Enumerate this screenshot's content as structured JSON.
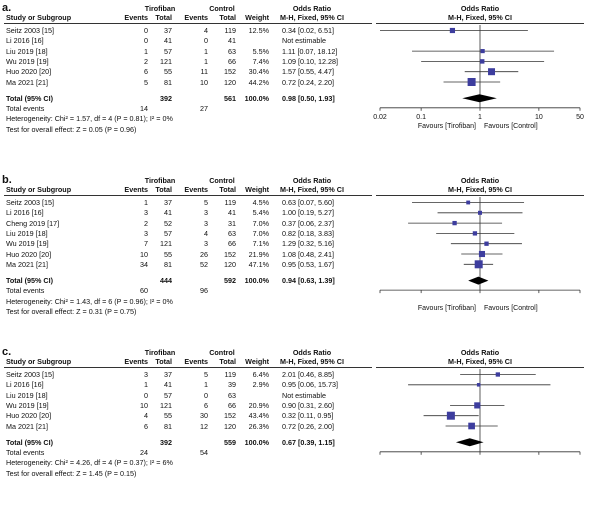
{
  "headers": {
    "study": "Study or Subgroup",
    "group1": "Tirofiban",
    "group2": "Control",
    "events": "Events",
    "total": "Total",
    "weight": "Weight",
    "or_title": "Odds Ratio",
    "or_method": "M-H, Fixed, 95% CI"
  },
  "panels": [
    {
      "label": "a.",
      "rows": [
        {
          "study": "Seitz 2003 [15]",
          "e1": "0",
          "t1": "37",
          "e2": "4",
          "t2": "119",
          "weight": "12.5%",
          "ci": "0.34 [0.02, 6.51]"
        },
        {
          "study": "Li 2016 [16]",
          "e1": "0",
          "t1": "41",
          "e2": "0",
          "t2": "41",
          "weight": "",
          "ci": "Not estimable"
        },
        {
          "study": "Liu 2019 [18]",
          "e1": "1",
          "t1": "57",
          "e2": "1",
          "t2": "63",
          "weight": "5.5%",
          "ci": "1.11 [0.07, 18.12]"
        },
        {
          "study": "Wu 2019 [19]",
          "e1": "2",
          "t1": "121",
          "e2": "1",
          "t2": "66",
          "weight": "7.4%",
          "ci": "1.09 [0.10, 12.28]"
        },
        {
          "study": "Huo 2020 [20]",
          "e1": "6",
          "t1": "55",
          "e2": "11",
          "t2": "152",
          "weight": "30.4%",
          "ci": "1.57 [0.55, 4.47]"
        },
        {
          "study": "Ma 2021 [21]",
          "e1": "5",
          "t1": "81",
          "e2": "10",
          "t2": "120",
          "weight": "44.2%",
          "ci": "0.72 [0.24, 2.20]"
        }
      ],
      "total": {
        "label": "Total (95% CI)",
        "t1": "392",
        "t2": "561",
        "weight": "100.0%",
        "ci": "0.98 [0.50, 1.93]"
      },
      "total_events": {
        "label": "Total events",
        "e1": "14",
        "e2": "27"
      },
      "heterogeneity": "Heterogeneity: Chi² = 1.57, df = 4 (P = 0.81); I² = 0%",
      "overall": "Test for overall effect: Z = 0.05 (P = 0.96)"
    },
    {
      "label": "b.",
      "rows": [
        {
          "study": "Seitz 2003 [15]",
          "e1": "1",
          "t1": "37",
          "e2": "5",
          "t2": "119",
          "weight": "4.5%",
          "ci": "0.63 [0.07, 5.60]"
        },
        {
          "study": "Li 2016 [16]",
          "e1": "3",
          "t1": "41",
          "e2": "3",
          "t2": "41",
          "weight": "5.4%",
          "ci": "1.00 [0.19, 5.27]"
        },
        {
          "study": "Cheng 2019 [17]",
          "e1": "2",
          "t1": "52",
          "e2": "3",
          "t2": "31",
          "weight": "7.0%",
          "ci": "0.37 [0.06, 2.37]"
        },
        {
          "study": "Liu 2019 [18]",
          "e1": "3",
          "t1": "57",
          "e2": "4",
          "t2": "63",
          "weight": "7.0%",
          "ci": "0.82 [0.18, 3.83]"
        },
        {
          "study": "Wu 2019 [19]",
          "e1": "7",
          "t1": "121",
          "e2": "3",
          "t2": "66",
          "weight": "7.1%",
          "ci": "1.29 [0.32, 5.16]"
        },
        {
          "study": "Huo 2020 [20]",
          "e1": "10",
          "t1": "55",
          "e2": "26",
          "t2": "152",
          "weight": "21.9%",
          "ci": "1.08 [0.48, 2.41]"
        },
        {
          "study": "Ma 2021 [21]",
          "e1": "34",
          "t1": "81",
          "e2": "52",
          "t2": "120",
          "weight": "47.1%",
          "ci": "0.95 [0.53, 1.67]"
        }
      ],
      "total": {
        "label": "Total (95% CI)",
        "t1": "444",
        "t2": "592",
        "weight": "100.0%",
        "ci": "0.94 [0.63, 1.39]"
      },
      "total_events": {
        "label": "Total events",
        "e1": "60",
        "e2": "96"
      },
      "heterogeneity": "Heterogeneity: Chi² = 1.43, df = 6 (P = 0.96); I² = 0%",
      "overall": "Test for overall effect: Z = 0.31 (P = 0.75)"
    },
    {
      "label": "c.",
      "rows": [
        {
          "study": "Seitz 2003 [15]",
          "e1": "3",
          "t1": "37",
          "e2": "5",
          "t2": "119",
          "weight": "6.4%",
          "ci": "2.01 [0.46, 8.85]"
        },
        {
          "study": "Li 2016 [16]",
          "e1": "1",
          "t1": "41",
          "e2": "1",
          "t2": "39",
          "weight": "2.9%",
          "ci": "0.95 [0.06, 15.73]"
        },
        {
          "study": "Liu 2019 [18]",
          "e1": "0",
          "t1": "57",
          "e2": "0",
          "t2": "63",
          "weight": "",
          "ci": "Not estimable"
        },
        {
          "study": "Wu 2019 [19]",
          "e1": "10",
          "t1": "121",
          "e2": "6",
          "t2": "66",
          "weight": "20.9%",
          "ci": "0.90 [0.31, 2.60]"
        },
        {
          "study": "Huo 2020 [20]",
          "e1": "4",
          "t1": "55",
          "e2": "30",
          "t2": "152",
          "weight": "43.4%",
          "ci": "0.32 [0.11, 0.95]"
        },
        {
          "study": "Ma 2021 [21]",
          "e1": "6",
          "t1": "81",
          "e2": "12",
          "t2": "120",
          "weight": "26.3%",
          "ci": "0.72 [0.26, 2.00]"
        }
      ],
      "total": {
        "label": "Total (95% CI)",
        "t1": "392",
        "t2": "559",
        "weight": "100.0%",
        "ci": "0.67 [0.39, 1.15]"
      },
      "total_events": {
        "label": "Total events",
        "e1": "24",
        "e2": "54"
      },
      "heterogeneity": "Heterogeneity: Chi² = 4.26, df = 4 (P = 0.37); I² = 6%",
      "overall": "Test for overall effect: Z = 1.45 (P = 0.15)"
    }
  ],
  "chart_data": [
    {
      "type": "forest",
      "axis_scale": "log",
      "xlim": [
        0.02,
        50
      ],
      "ticks": [
        0.02,
        0.1,
        1,
        10,
        50
      ],
      "tick_labels": [
        "0.02",
        "0.1",
        "1",
        "10",
        "50"
      ],
      "axis_left_label": "Favours [Tirofiban]",
      "axis_right_label": "Favours [Control]",
      "marker_color": "#3d3d9e",
      "studies": [
        {
          "name": "Seitz 2003 [15]",
          "or": 0.34,
          "lo": 0.02,
          "hi": 6.51,
          "weight": 12.5
        },
        {
          "name": "Li 2016 [16]",
          "or": null,
          "lo": null,
          "hi": null,
          "weight": 0
        },
        {
          "name": "Liu 2019 [18]",
          "or": 1.11,
          "lo": 0.07,
          "hi": 18.12,
          "weight": 5.5
        },
        {
          "name": "Wu 2019 [19]",
          "or": 1.09,
          "lo": 0.1,
          "hi": 12.28,
          "weight": 7.4
        },
        {
          "name": "Huo 2020 [20]",
          "or": 1.57,
          "lo": 0.55,
          "hi": 4.47,
          "weight": 30.4
        },
        {
          "name": "Ma 2021 [21]",
          "or": 0.72,
          "lo": 0.24,
          "hi": 2.2,
          "weight": 44.2
        }
      ],
      "pooled": {
        "or": 0.98,
        "lo": 0.5,
        "hi": 1.93
      }
    },
    {
      "type": "forest",
      "axis_scale": "log",
      "xlim": [
        0.02,
        50
      ],
      "ticks": [
        0.02,
        0.1,
        1,
        10,
        50
      ],
      "tick_labels": [
        "",
        "",
        "",
        "",
        ""
      ],
      "axis_left_label": "Favours [Tirofiban]",
      "axis_right_label": "Favours [Control]",
      "marker_color": "#3d3d9e",
      "studies": [
        {
          "name": "Seitz 2003 [15]",
          "or": 0.63,
          "lo": 0.07,
          "hi": 5.6,
          "weight": 4.5
        },
        {
          "name": "Li 2016 [16]",
          "or": 1.0,
          "lo": 0.19,
          "hi": 5.27,
          "weight": 5.4
        },
        {
          "name": "Cheng 2019 [17]",
          "or": 0.37,
          "lo": 0.06,
          "hi": 2.37,
          "weight": 7.0
        },
        {
          "name": "Liu 2019 [18]",
          "or": 0.82,
          "lo": 0.18,
          "hi": 3.83,
          "weight": 7.0
        },
        {
          "name": "Wu 2019 [19]",
          "or": 1.29,
          "lo": 0.32,
          "hi": 5.16,
          "weight": 7.1
        },
        {
          "name": "Huo 2020 [20]",
          "or": 1.08,
          "lo": 0.48,
          "hi": 2.41,
          "weight": 21.9
        },
        {
          "name": "Ma 2021 [21]",
          "or": 0.95,
          "lo": 0.53,
          "hi": 1.67,
          "weight": 47.1
        }
      ],
      "pooled": {
        "or": 0.94,
        "lo": 0.63,
        "hi": 1.39
      }
    },
    {
      "type": "forest",
      "axis_scale": "log",
      "xlim": [
        0.02,
        50
      ],
      "ticks": [
        0.02,
        0.1,
        1,
        10,
        50
      ],
      "tick_labels": [
        "",
        "",
        "",
        "",
        ""
      ],
      "axis_left_label": "",
      "axis_right_label": "",
      "marker_color": "#3d3d9e",
      "studies": [
        {
          "name": "Seitz 2003 [15]",
          "or": 2.01,
          "lo": 0.46,
          "hi": 8.85,
          "weight": 6.4
        },
        {
          "name": "Li 2016 [16]",
          "or": 0.95,
          "lo": 0.06,
          "hi": 15.73,
          "weight": 2.9
        },
        {
          "name": "Liu 2019 [18]",
          "or": null,
          "lo": null,
          "hi": null,
          "weight": 0
        },
        {
          "name": "Wu 2019 [19]",
          "or": 0.9,
          "lo": 0.31,
          "hi": 2.6,
          "weight": 20.9
        },
        {
          "name": "Huo 2020 [20]",
          "or": 0.32,
          "lo": 0.11,
          "hi": 0.95,
          "weight": 43.4
        },
        {
          "name": "Ma 2021 [21]",
          "or": 0.72,
          "lo": 0.26,
          "hi": 2.0,
          "weight": 26.3
        }
      ],
      "pooled": {
        "or": 0.67,
        "lo": 0.39,
        "hi": 1.15
      }
    }
  ]
}
